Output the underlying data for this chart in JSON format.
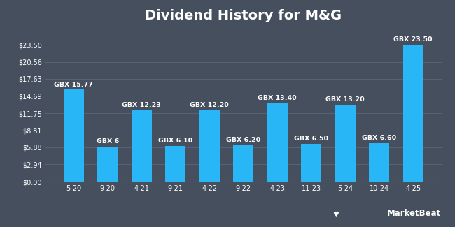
{
  "title": "Dividend History for M&G",
  "categories": [
    "5-20",
    "9-20",
    "4-21",
    "9-21",
    "4-22",
    "9-22",
    "4-23",
    "11-23",
    "5-24",
    "10-24",
    "4-25"
  ],
  "values": [
    15.77,
    6.0,
    12.23,
    6.1,
    12.2,
    6.2,
    13.4,
    6.5,
    13.2,
    6.6,
    23.5
  ],
  "bar_labels": [
    "GBX 15.77",
    "GBX 6",
    "GBX 12.23",
    "GBX 6.10",
    "GBX 12.20",
    "GBX 6.20",
    "GBX 13.40",
    "GBX 6.50",
    "GBX 13.20",
    "GBX 6.60",
    "GBX 23.50"
  ],
  "bar_color": "#29b6f6",
  "background_color": "#464f5e",
  "text_color": "#ffffff",
  "grid_color": "#5a6375",
  "ytick_labels": [
    "$0.00",
    "$2.94",
    "$5.88",
    "$8.81",
    "$11.75",
    "$14.69",
    "$17.63",
    "$20.56",
    "$23.50"
  ],
  "ytick_values": [
    0.0,
    2.94,
    5.88,
    8.81,
    11.75,
    14.69,
    17.63,
    20.56,
    23.5
  ],
  "ylim": [
    0,
    26.5
  ],
  "title_fontsize": 14,
  "tick_fontsize": 7.0,
  "bar_label_fontsize": 6.8
}
